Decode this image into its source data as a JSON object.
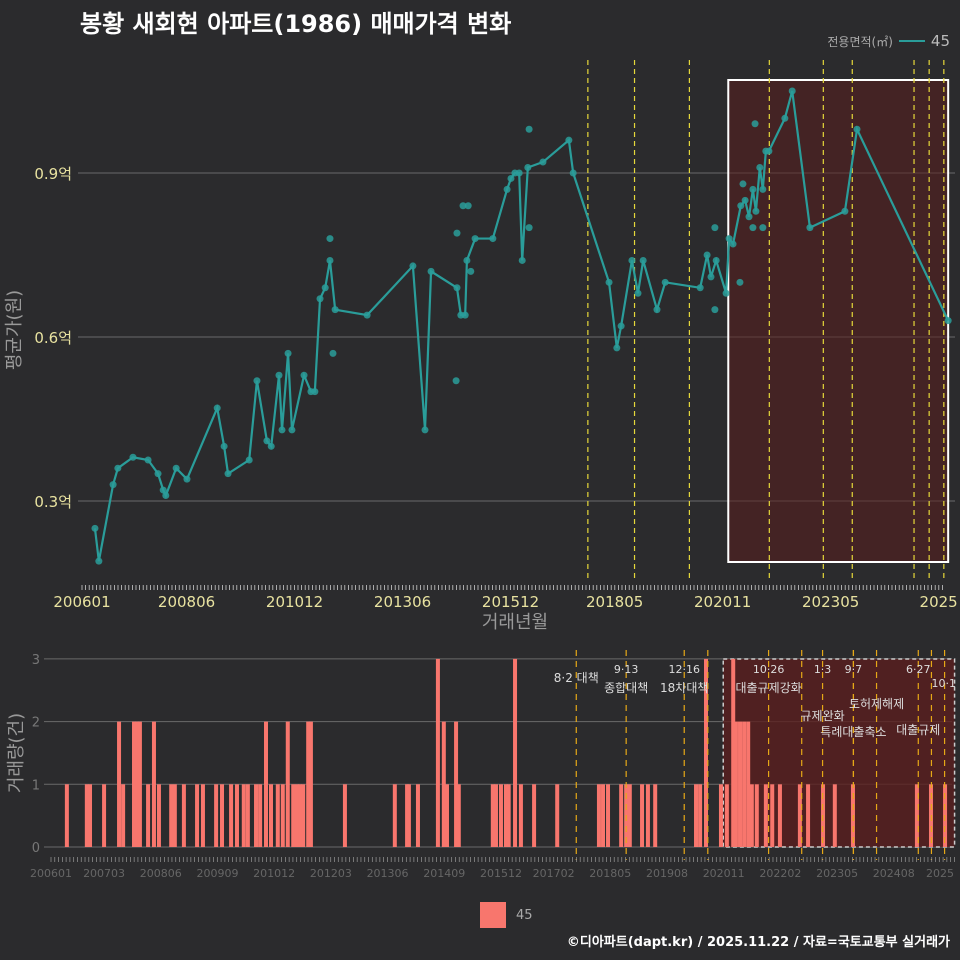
{
  "title": "봉황 새회현 아파트(1986) 매매가격 변화",
  "legend": {
    "title": "전용면적(㎡)",
    "item": "45"
  },
  "footer": "©디아파트(dapt.kr) / 2025.11.22 / 자료=국토교통부 실거래가",
  "colors": {
    "line": "#2a9d9a",
    "bar": "#f8766d",
    "event_top": "#e6d83a",
    "event_bottom": "#e6a817",
    "highlight": "#5a1e1e"
  },
  "chart_data": [
    {
      "type": "line",
      "title": "봉황 새회현 아파트(1986) 매매가격 변화",
      "xlabel": "거래년월",
      "ylabel": "평균가(원)",
      "xlim": [
        2006.0,
        2026.1
      ],
      "ylim": [
        0.15,
        1.1
      ],
      "yticks": [
        {
          "v": 0.3,
          "label": "0.3억"
        },
        {
          "v": 0.6,
          "label": "0.6억"
        },
        {
          "v": 0.9,
          "label": "0.9억"
        }
      ],
      "xticks": [
        {
          "v": 2006.0,
          "label": "200601"
        },
        {
          "v": 2008.42,
          "label": "200806"
        },
        {
          "v": 2010.92,
          "label": "201012"
        },
        {
          "v": 2013.42,
          "label": "201306"
        },
        {
          "v": 2015.92,
          "label": "201512"
        },
        {
          "v": 2018.33,
          "label": "201805"
        },
        {
          "v": 2020.83,
          "label": "202011"
        },
        {
          "v": 2023.33,
          "label": "202305"
        },
        {
          "v": 2025.83,
          "label": "2025"
        }
      ],
      "series": [
        {
          "name": "45",
          "points": [
            [
              2006.3,
              0.25
            ],
            [
              2006.39,
              0.19
            ],
            [
              2006.72,
              0.33
            ],
            [
              2006.83,
              0.36
            ],
            [
              2007.18,
              0.38
            ],
            [
              2007.53,
              0.375
            ],
            [
              2007.76,
              0.35
            ],
            [
              2007.88,
              0.32
            ],
            [
              2007.94,
              0.31
            ],
            [
              2008.18,
              0.36
            ],
            [
              2008.43,
              0.34
            ],
            [
              2009.13,
              0.47
            ],
            [
              2009.29,
              0.4
            ],
            [
              2009.38,
              0.35
            ],
            [
              2009.87,
              0.375
            ],
            [
              2010.05,
              0.52
            ],
            [
              2010.28,
              0.41
            ],
            [
              2010.38,
              0.4
            ],
            [
              2010.56,
              0.53
            ],
            [
              2010.63,
              0.43
            ],
            [
              2010.77,
              0.57
            ],
            [
              2010.86,
              0.43
            ],
            [
              2011.14,
              0.53
            ],
            [
              2011.3,
              0.5
            ],
            [
              2011.39,
              0.5
            ],
            [
              2011.51,
              0.67
            ],
            [
              2011.63,
              0.69
            ],
            [
              2011.74,
              0.74
            ],
            [
              2011.86,
              0.65
            ],
            [
              2012.6,
              0.64
            ],
            [
              2013.66,
              0.73
            ],
            [
              2013.94,
              0.43
            ],
            [
              2014.08,
              0.72
            ],
            [
              2014.68,
              0.69
            ],
            [
              2014.77,
              0.64
            ],
            [
              2014.87,
              0.64
            ],
            [
              2014.91,
              0.74
            ],
            [
              2015.1,
              0.78
            ],
            [
              2015.51,
              0.78
            ],
            [
              2015.84,
              0.87
            ],
            [
              2015.93,
              0.89
            ],
            [
              2016.02,
              0.9
            ],
            [
              2016.12,
              0.9
            ],
            [
              2016.19,
              0.74
            ],
            [
              2016.32,
              0.91
            ],
            [
              2016.67,
              0.92
            ],
            [
              2017.27,
              0.96
            ],
            [
              2017.37,
              0.9
            ],
            [
              2018.2,
              0.7
            ],
            [
              2018.38,
              0.58
            ],
            [
              2018.48,
              0.62
            ],
            [
              2018.73,
              0.74
            ],
            [
              2018.87,
              0.68
            ],
            [
              2018.99,
              0.74
            ],
            [
              2019.31,
              0.65
            ],
            [
              2019.5,
              0.7
            ],
            [
              2020.31,
              0.69
            ],
            [
              2020.47,
              0.75
            ],
            [
              2020.56,
              0.71
            ],
            [
              2020.68,
              0.74
            ],
            [
              2020.91,
              0.68
            ],
            [
              2020.98,
              0.78
            ],
            [
              2021.07,
              0.77
            ],
            [
              2021.25,
              0.84
            ],
            [
              2021.35,
              0.85
            ],
            [
              2021.44,
              0.82
            ],
            [
              2021.53,
              0.87
            ],
            [
              2021.6,
              0.83
            ],
            [
              2021.69,
              0.91
            ],
            [
              2021.76,
              0.87
            ],
            [
              2021.83,
              0.94
            ],
            [
              2021.9,
              0.94
            ],
            [
              2022.27,
              1.0
            ],
            [
              2022.44,
              1.05
            ],
            [
              2022.85,
              0.8
            ],
            [
              2023.66,
              0.83
            ],
            [
              2023.94,
              0.98
            ],
            [
              2026.05,
              0.63
            ]
          ]
        }
      ],
      "extra_points": [
        [
          2011.74,
          0.78
        ],
        [
          2011.81,
          0.57
        ],
        [
          2014.66,
          0.52
        ],
        [
          2014.68,
          0.79
        ],
        [
          2014.82,
          0.84
        ],
        [
          2014.94,
          0.84
        ],
        [
          2015.0,
          0.72
        ],
        [
          2016.35,
          0.98
        ],
        [
          2016.35,
          0.8
        ],
        [
          2020.65,
          0.8
        ],
        [
          2020.65,
          0.65
        ],
        [
          2021.23,
          0.7
        ],
        [
          2021.58,
          0.99
        ],
        [
          2021.76,
          0.8
        ],
        [
          2021.53,
          0.8
        ],
        [
          2021.3,
          0.88
        ]
      ],
      "events": [
        2017.71,
        2018.79,
        2020.06,
        2021.91,
        2023.16,
        2023.83,
        2025.26,
        2025.61,
        2025.95
      ],
      "highlight": [
        2020.96,
        2026.05
      ]
    },
    {
      "type": "bar",
      "ylabel": "거래량(건)",
      "xlim": [
        2006.0,
        2025.9
      ],
      "ylim": [
        0,
        3
      ],
      "yticks": [
        {
          "v": 0,
          "label": "0"
        },
        {
          "v": 1,
          "label": "1"
        },
        {
          "v": 2,
          "label": "2"
        },
        {
          "v": 3,
          "label": "3"
        }
      ],
      "xticks": [
        {
          "v": 2006.0,
          "label": "200601"
        },
        {
          "v": 2007.17,
          "label": "200703"
        },
        {
          "v": 2008.42,
          "label": "200806"
        },
        {
          "v": 2009.67,
          "label": "200909"
        },
        {
          "v": 2010.92,
          "label": "201012"
        },
        {
          "v": 2012.17,
          "label": "201203"
        },
        {
          "v": 2013.42,
          "label": "201306"
        },
        {
          "v": 2014.67,
          "label": "201409"
        },
        {
          "v": 2015.92,
          "label": "201512"
        },
        {
          "v": 2017.08,
          "label": "201702"
        },
        {
          "v": 2018.33,
          "label": "201805"
        },
        {
          "v": 2019.58,
          "label": "201908"
        },
        {
          "v": 2020.83,
          "label": "202011"
        },
        {
          "v": 2022.08,
          "label": "202202"
        },
        {
          "v": 2023.33,
          "label": "202305"
        },
        {
          "v": 2024.58,
          "label": "202408"
        },
        {
          "v": 2025.6,
          "label": "2025"
        }
      ],
      "series": [
        {
          "name": "45",
          "bars": [
            [
              2006.35,
              1
            ],
            [
              2006.79,
              1
            ],
            [
              2006.86,
              1
            ],
            [
              2007.17,
              1
            ],
            [
              2007.5,
              2
            ],
            [
              2007.59,
              1
            ],
            [
              2007.83,
              2
            ],
            [
              2007.9,
              2
            ],
            [
              2007.96,
              2
            ],
            [
              2008.14,
              1
            ],
            [
              2008.27,
              2
            ],
            [
              2008.38,
              1
            ],
            [
              2008.65,
              1
            ],
            [
              2008.73,
              1
            ],
            [
              2008.93,
              1
            ],
            [
              2009.22,
              1
            ],
            [
              2009.35,
              1
            ],
            [
              2009.64,
              1
            ],
            [
              2009.77,
              1
            ],
            [
              2009.97,
              1
            ],
            [
              2010.1,
              1
            ],
            [
              2010.25,
              1
            ],
            [
              2010.34,
              1
            ],
            [
              2010.52,
              1
            ],
            [
              2010.61,
              1
            ],
            [
              2010.74,
              2
            ],
            [
              2010.85,
              1
            ],
            [
              2011.0,
              1
            ],
            [
              2011.11,
              1
            ],
            [
              2011.22,
              2
            ],
            [
              2011.34,
              1
            ],
            [
              2011.42,
              1
            ],
            [
              2011.49,
              1
            ],
            [
              2011.56,
              1
            ],
            [
              2011.67,
              2
            ],
            [
              2011.73,
              2
            ],
            [
              2012.48,
              1
            ],
            [
              2013.58,
              1
            ],
            [
              2013.85,
              1
            ],
            [
              2013.89,
              1
            ],
            [
              2014.09,
              1
            ],
            [
              2014.53,
              3
            ],
            [
              2014.66,
              2
            ],
            [
              2014.73,
              1
            ],
            [
              2014.93,
              2
            ],
            [
              2014.99,
              1
            ],
            [
              2015.74,
              1
            ],
            [
              2015.81,
              1
            ],
            [
              2015.92,
              1
            ],
            [
              2016.03,
              1
            ],
            [
              2016.09,
              1
            ],
            [
              2016.23,
              3
            ],
            [
              2016.36,
              1
            ],
            [
              2016.65,
              1
            ],
            [
              2017.16,
              1
            ],
            [
              2018.08,
              1
            ],
            [
              2018.17,
              1
            ],
            [
              2018.28,
              1
            ],
            [
              2018.57,
              1
            ],
            [
              2018.68,
              1
            ],
            [
              2018.76,
              1
            ],
            [
              2019.03,
              1
            ],
            [
              2019.16,
              1
            ],
            [
              2019.32,
              1
            ],
            [
              2020.22,
              1
            ],
            [
              2020.31,
              1
            ],
            [
              2020.44,
              3
            ],
            [
              2020.77,
              1
            ],
            [
              2020.9,
              1
            ],
            [
              2021.04,
              3
            ],
            [
              2021.1,
              2
            ],
            [
              2021.19,
              2
            ],
            [
              2021.28,
              2
            ],
            [
              2021.37,
              2
            ],
            [
              2021.45,
              1
            ],
            [
              2021.56,
              1
            ],
            [
              2021.76,
              1
            ],
            [
              2021.9,
              1
            ],
            [
              2022.07,
              1
            ],
            [
              2022.51,
              1
            ],
            [
              2022.69,
              1
            ],
            [
              2023.02,
              1
            ],
            [
              2023.28,
              1
            ],
            [
              2023.68,
              1
            ],
            [
              2025.09,
              1
            ],
            [
              2025.4,
              1
            ],
            [
              2025.71,
              1
            ]
          ]
        }
      ],
      "events": [
        {
          "v": 2017.58,
          "date": "",
          "label": "8·2 대책",
          "row": 0
        },
        {
          "v": 2018.68,
          "date": "9·13",
          "label": "종합대책",
          "row": 1
        },
        {
          "v": 2019.96,
          "date": "12·16",
          "label": "18차대책",
          "row": 1
        },
        {
          "v": 2020.48,
          "date": "",
          "label": "",
          "row": 1
        },
        {
          "v": 2021.82,
          "date": "10·26",
          "label": "대출규제강화",
          "row": 1
        },
        {
          "v": 2022.55,
          "date": "",
          "label": "",
          "row": 1
        },
        {
          "v": 2023.01,
          "date": "1·3",
          "label": "규제완화",
          "row": 1
        },
        {
          "v": 2023.69,
          "date": "9·7",
          "label": "",
          "row": 1
        },
        {
          "v": 2023.69,
          "date": "",
          "label": "특례대출축소",
          "row": 2
        },
        {
          "v": 2024.2,
          "date": "",
          "label": "토허제해제",
          "row": 2
        },
        {
          "v": 2025.12,
          "date": "6·27",
          "label": "대출규제",
          "row": 1
        },
        {
          "v": 2025.41,
          "date": "",
          "label": "",
          "row": 1
        },
        {
          "v": 2025.7,
          "date": "10·1",
          "label": "",
          "row": 1
        }
      ],
      "highlight": [
        2020.82,
        2025.92
      ]
    }
  ]
}
